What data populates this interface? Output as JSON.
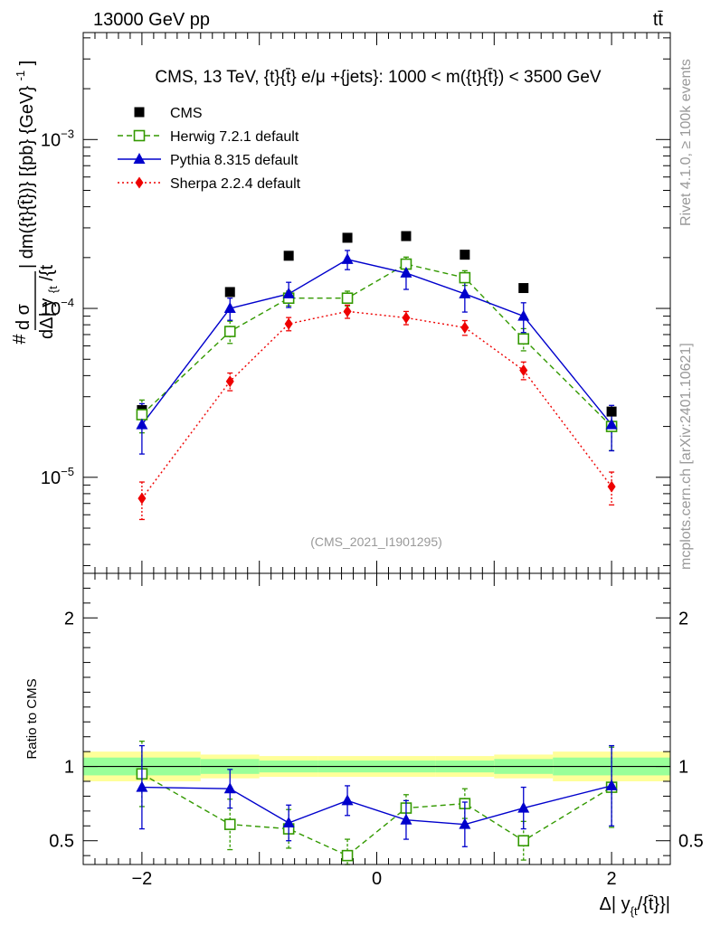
{
  "header": {
    "left": "13000 GeV pp",
    "right": "tt̄"
  },
  "side_text": {
    "rivet": "Rivet 4.1.0, ≥ 100k events",
    "mcplots": "mcplots.cern.ch [arXiv:2401.10621]"
  },
  "watermark": "(CMS_2021_I1901295)",
  "colors": {
    "cms": "#000000",
    "herwig": "#339900",
    "pythia": "#0000cc",
    "sherpa": "#ee0000",
    "band_inner": "#99ff99",
    "band_outer": "#ffff99"
  },
  "chart_data": [
    {
      "type": "scatter",
      "panel": "main",
      "title": "CMS, 13 TeV, {t}{t̄} e/μ +{jets}: 1000 < m({t}{t̄}) < 3500 GeV",
      "ylabel": "dσ / dΔ|y_{t}/{t̄}| dm({t}{t̄}) [{pb} {GeV}^{-1}]",
      "ylabel_parts": {
        "hash": "#",
        "num": "d σ",
        "den": "dΔ| y",
        "den_sub": "{t",
        "den_tail": "/{t",
        "rest": "| dm({t}{t̄})} [{pb} {GeV}",
        "sup": "-1",
        "close": "]"
      },
      "yscale": "log",
      "ylim": [
        2.7e-06,
        0.0043
      ],
      "xlim": [
        -2.5,
        2.5
      ],
      "y_ticks": [
        {
          "value": 1e-05,
          "base": "10",
          "exp": "−5"
        },
        {
          "value": 0.0001,
          "base": "10",
          "exp": "−4"
        },
        {
          "value": 0.001,
          "base": "10",
          "exp": "−3"
        }
      ],
      "legend_position": "top-left",
      "x": [
        -2.0,
        -1.25,
        -0.75,
        -0.25,
        0.25,
        0.75,
        1.25,
        2.0
      ],
      "series": [
        {
          "name": "CMS",
          "style": "square",
          "values": [
            2.5e-05,
            0.000125,
            0.000205,
            0.000262,
            0.000268,
            0.000208,
            0.000132,
            2.45e-05
          ]
        },
        {
          "name": "Herwig 7.2.1 default",
          "style": "open-square-dashed",
          "values": [
            2.35e-05,
            7.3e-05,
            0.000115,
            0.000115,
            0.000183,
            0.000152,
            6.6e-05,
            2e-05
          ],
          "err": [
            0.22,
            0.15,
            0.1,
            0.1,
            0.1,
            0.1,
            0.15,
            0.28
          ]
        },
        {
          "name": "Pythia 8.315 default",
          "style": "triangle-solid",
          "values": [
            2.05e-05,
            0.0001,
            0.000122,
            0.000195,
            0.000162,
            0.000122,
            9e-05,
            2.05e-05
          ],
          "err": [
            0.33,
            0.15,
            0.17,
            0.13,
            0.2,
            0.22,
            0.2,
            0.3
          ]
        },
        {
          "name": "Sherpa 2.2.4 default",
          "style": "diamond-dotted",
          "values": [
            7.5e-06,
            3.7e-05,
            8.1e-05,
            9.6e-05,
            8.8e-05,
            7.7e-05,
            4.3e-05,
            8.8e-06
          ],
          "err": [
            0.25,
            0.12,
            0.09,
            0.09,
            0.09,
            0.1,
            0.12,
            0.22
          ]
        }
      ]
    },
    {
      "type": "scatter",
      "panel": "ratio",
      "ylabel": "Ratio to CMS",
      "xlabel": "Δ| y_{t}/{t̄}|",
      "xlabel_parts": {
        "main": "Δ| y",
        "sub": "{t",
        "tail": "/{t̄}}|"
      },
      "ylim": [
        0.34,
        2.3
      ],
      "xlim": [
        -2.5,
        2.5
      ],
      "y_ticks": [
        0.5,
        1,
        2
      ],
      "y_tick_labels": [
        "0.5",
        "1",
        "2"
      ],
      "x_ticks": [
        -2,
        0,
        2
      ],
      "x_tick_labels": [
        "−2",
        "0",
        "2"
      ],
      "x_edges": [
        -2.5,
        -1.5,
        -1.0,
        -0.5,
        0.0,
        0.5,
        1.0,
        1.5,
        2.5
      ],
      "band_inner": [
        0.06,
        0.05,
        0.04,
        0.04,
        0.04,
        0.04,
        0.05,
        0.06
      ],
      "band_outer": [
        0.1,
        0.08,
        0.07,
        0.07,
        0.07,
        0.07,
        0.08,
        0.1
      ],
      "x": [
        -2.0,
        -1.25,
        -0.75,
        -0.25,
        0.25,
        0.75,
        1.25,
        2.0
      ],
      "series": [
        {
          "name": "Herwig 7.2.1 default",
          "values": [
            0.95,
            0.61,
            0.58,
            0.4,
            0.72,
            0.75,
            0.5,
            0.86
          ],
          "err": [
            0.22,
            0.17,
            0.13,
            0.11,
            0.09,
            0.1,
            0.13,
            0.27
          ]
        },
        {
          "name": "Pythia 8.315 default",
          "values": [
            0.86,
            0.85,
            0.62,
            0.77,
            0.64,
            0.61,
            0.72,
            0.87
          ],
          "err": [
            0.28,
            0.13,
            0.12,
            0.1,
            0.13,
            0.15,
            0.14,
            0.27
          ]
        }
      ]
    }
  ]
}
